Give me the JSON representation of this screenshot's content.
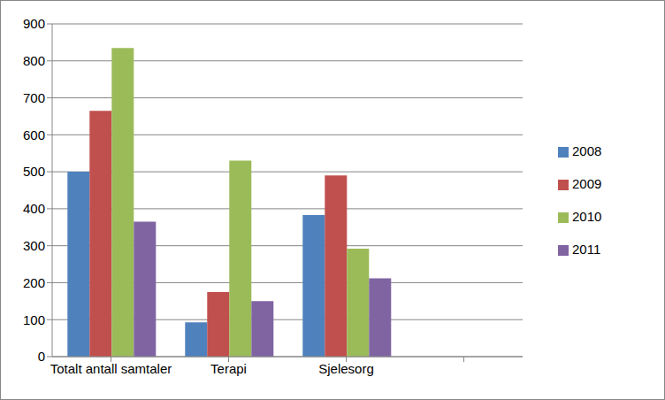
{
  "chart_data": {
    "type": "bar",
    "categories": [
      "Totalt antall samtaler",
      "Terapi",
      "Sjelesorg",
      null
    ],
    "series": [
      {
        "name": "2008",
        "color": "#4f81bd",
        "values": [
          500,
          93,
          383,
          null
        ]
      },
      {
        "name": "2009",
        "color": "#c0504d",
        "values": [
          665,
          175,
          490,
          null
        ]
      },
      {
        "name": "2010",
        "color": "#9bbb59",
        "values": [
          835,
          530,
          292,
          null
        ]
      },
      {
        "name": "2011",
        "color": "#8064a2",
        "values": [
          365,
          150,
          212,
          null
        ]
      }
    ],
    "ylim": [
      0,
      900
    ],
    "yticks": [
      0,
      100,
      200,
      300,
      400,
      500,
      600,
      700,
      800,
      900
    ],
    "grid": true,
    "legend": "right"
  }
}
